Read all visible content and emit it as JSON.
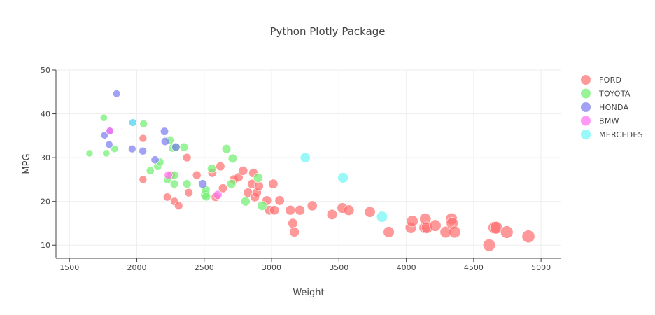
{
  "chart_data": {
    "type": "scatter",
    "title": "Python Plotly Package",
    "xlabel": "Weight",
    "ylabel": "MPG",
    "xlim": [
      1400,
      5150
    ],
    "ylim": [
      7,
      50
    ],
    "xticks": [
      1500,
      2000,
      2500,
      3000,
      3500,
      4000,
      4500,
      5000
    ],
    "yticks": [
      10,
      20,
      30,
      40,
      50
    ],
    "grid": true,
    "legend_position": "right",
    "marker_size_encodes": "Weight",
    "series": [
      {
        "name": "FORD",
        "color": "#ff6e6e",
        "points": [
          [
            2046,
            34.4
          ],
          [
            2046,
            25
          ],
          [
            2226,
            21
          ],
          [
            2254,
            26
          ],
          [
            2279,
            20
          ],
          [
            2310,
            19
          ],
          [
            2372,
            30
          ],
          [
            2385,
            22
          ],
          [
            2445,
            26
          ],
          [
            2560,
            26.5
          ],
          [
            2585,
            21
          ],
          [
            2620,
            28
          ],
          [
            2639,
            23
          ],
          [
            2720,
            25
          ],
          [
            2755,
            25.5
          ],
          [
            2789,
            27
          ],
          [
            2825,
            22
          ],
          [
            2855,
            24
          ],
          [
            2865,
            26.5
          ],
          [
            2875,
            21
          ],
          [
            2890,
            22
          ],
          [
            2905,
            23.5
          ],
          [
            2965,
            20.2
          ],
          [
            2984,
            18
          ],
          [
            3012,
            24
          ],
          [
            3021,
            18
          ],
          [
            3060,
            20.2
          ],
          [
            3139,
            18
          ],
          [
            3158,
            15
          ],
          [
            3169,
            13
          ],
          [
            3210,
            18
          ],
          [
            3302,
            19
          ],
          [
            3449,
            17
          ],
          [
            3525,
            18.5
          ],
          [
            3574,
            18
          ],
          [
            3730,
            17.6
          ],
          [
            3870,
            13
          ],
          [
            4034,
            14
          ],
          [
            4045,
            15.5
          ],
          [
            4137,
            14
          ],
          [
            4141,
            16
          ],
          [
            4154,
            14
          ],
          [
            4215,
            14.5
          ],
          [
            4294,
            13
          ],
          [
            4335,
            16
          ],
          [
            4341,
            15
          ],
          [
            4360,
            13
          ],
          [
            4615,
            10
          ],
          [
            4654,
            14
          ],
          [
            4668,
            14
          ],
          [
            4746,
            13
          ],
          [
            4906,
            12
          ]
        ]
      },
      {
        "name": "TOYOTA",
        "color": "#6ef06e",
        "points": [
          [
            1649,
            31
          ],
          [
            1755,
            39.1
          ],
          [
            1773,
            31
          ],
          [
            1835,
            32
          ],
          [
            2050,
            37.7
          ],
          [
            2100,
            27
          ],
          [
            2155,
            28
          ],
          [
            2171,
            29
          ],
          [
            2228,
            25
          ],
          [
            2245,
            34
          ],
          [
            2265,
            32.2
          ],
          [
            2278,
            24
          ],
          [
            2279,
            26
          ],
          [
            2290,
            32.4
          ],
          [
            2350,
            32.4
          ],
          [
            2372,
            24
          ],
          [
            2506,
            21.5
          ],
          [
            2511,
            22.6
          ],
          [
            2515,
            21.1
          ],
          [
            2556,
            27.5
          ],
          [
            2665,
            32
          ],
          [
            2702,
            24
          ],
          [
            2711,
            29.8
          ],
          [
            2807,
            20
          ],
          [
            2900,
            25.4
          ],
          [
            2930,
            19
          ]
        ]
      },
      {
        "name": "HONDA",
        "color": "#7a7af0",
        "points": [
          [
            1760,
            35.1
          ],
          [
            1795,
            33
          ],
          [
            1800,
            36.1
          ],
          [
            1850,
            44.6
          ],
          [
            1965,
            32
          ],
          [
            1970,
            38
          ],
          [
            2045,
            31.5
          ],
          [
            2135,
            29.5
          ],
          [
            2205,
            36
          ],
          [
            2210,
            33.7
          ],
          [
            2290,
            32.4
          ],
          [
            2489,
            24
          ]
        ]
      },
      {
        "name": "BMW",
        "color": "#ff6ef0",
        "points": [
          [
            1800,
            36.1
          ],
          [
            2234,
            26
          ],
          [
            2600,
            21.5
          ]
        ]
      },
      {
        "name": "MERCEDES",
        "color": "#6ef6f6",
        "points": [
          [
            1970,
            38
          ],
          [
            3250,
            30
          ],
          [
            3530,
            25.4
          ],
          [
            3820,
            16.5
          ]
        ]
      }
    ]
  }
}
